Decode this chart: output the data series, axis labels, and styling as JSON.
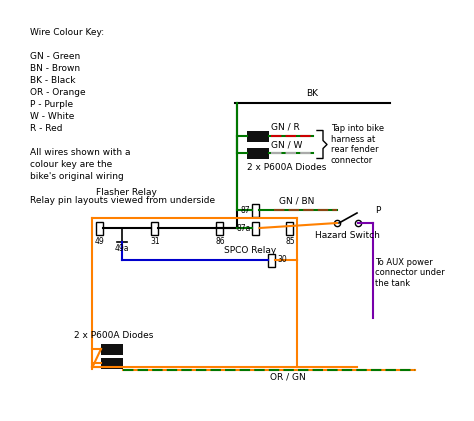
{
  "background_color": "#ffffff",
  "wire_colour_key": [
    "Wire Colour Key:",
    "",
    "GN - Green",
    "BN - Brown",
    "BK - Black",
    "OR - Orange",
    "P - Purple",
    "W - White",
    "R - Red",
    "",
    "All wires shown with a",
    "colour key are the",
    "bike's original wiring",
    "",
    "Relay pin layouts viewed from underside"
  ],
  "colors": {
    "black": "#000000",
    "green": "#007700",
    "orange": "#FF8000",
    "blue": "#0000CC",
    "purple": "#7700AA",
    "red": "#CC0000",
    "white": "#ffffff",
    "brown": "#8B4513",
    "gray": "#aaaaaa"
  },
  "labels": {
    "BK": "BK",
    "GN_R": "GN / R",
    "GN_W": "GN / W",
    "GN_BN": "GN / BN",
    "OR_GN": "OR / GN",
    "P": "P",
    "diodes_top": "2 x P600A Diodes",
    "diodes_bottom": "2 x P600A Diodes",
    "flasher_relay": "Flasher Relay",
    "spco_relay": "SPCO Relay",
    "hazard_switch": "Hazard Switch",
    "tap_note": "Tap into bike\nharness at\nrear fender\nconnector",
    "aux_note": "To AUX power\nconnector under\nthe tank",
    "pin_49": "49",
    "pin_49a": "49a",
    "pin_31": "31",
    "pin_86": "86",
    "pin_87": "87",
    "pin_87a": "87a",
    "pin_85": "85",
    "pin_30": "30"
  }
}
